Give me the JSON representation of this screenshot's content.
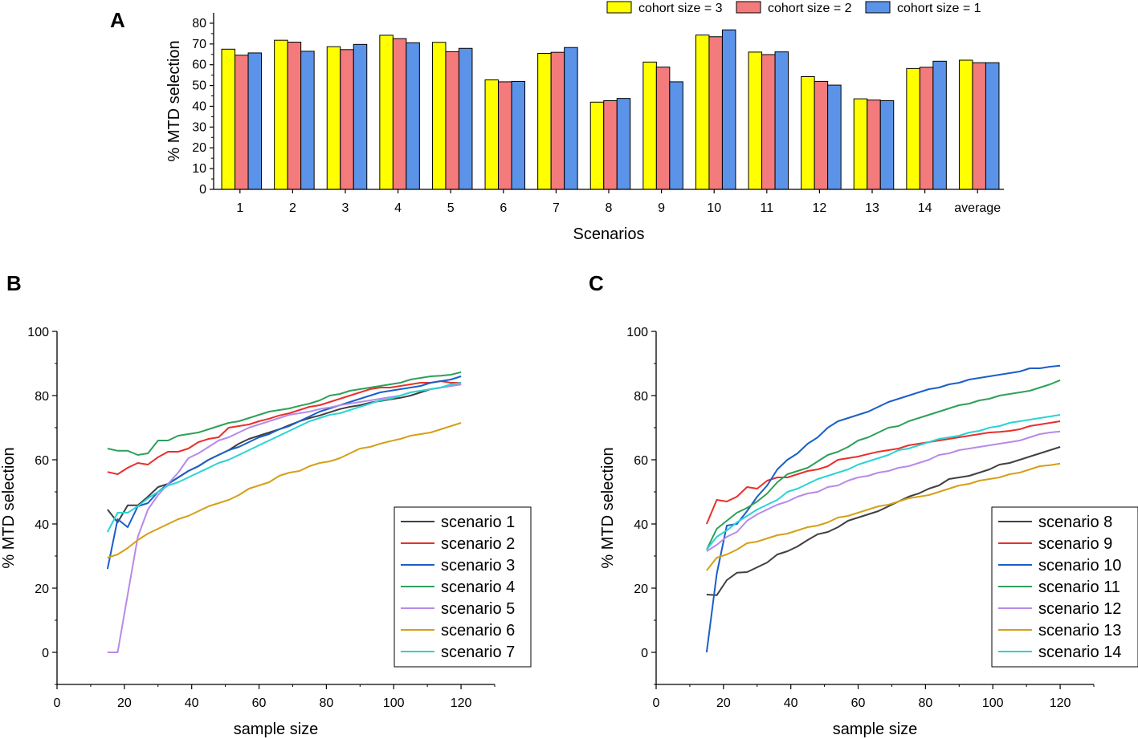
{
  "chart_data": [
    {
      "panel": "A",
      "type": "bar",
      "xlabel": "Scenarios",
      "ylabel": "% MTD selection",
      "ylim": [
        0,
        85
      ],
      "yticks": [
        0,
        10,
        20,
        30,
        40,
        50,
        60,
        70,
        80
      ],
      "categories": [
        "1",
        "2",
        "3",
        "4",
        "5",
        "6",
        "7",
        "8",
        "9",
        "10",
        "11",
        "12",
        "13",
        "14",
        "average"
      ],
      "legend_position": "top-right",
      "series": [
        {
          "name": "cohort size = 3",
          "color": "#ffff00",
          "values": [
            67.5,
            71.8,
            68.7,
            74.2,
            70.8,
            52.7,
            65.5,
            42.0,
            61.3,
            74.3,
            66.1,
            54.3,
            43.6,
            58.2,
            62.2
          ]
        },
        {
          "name": "cohort size = 2",
          "color": "#f37b7b",
          "values": [
            64.6,
            70.9,
            67.3,
            72.6,
            66.3,
            51.8,
            66.0,
            42.7,
            58.9,
            73.5,
            64.9,
            52.0,
            43.0,
            58.8,
            61.0
          ]
        },
        {
          "name": "cohort size = 1",
          "color": "#5b93e8",
          "values": [
            65.7,
            66.5,
            69.8,
            70.6,
            67.9,
            52.0,
            68.3,
            43.8,
            51.8,
            76.8,
            66.2,
            50.2,
            42.7,
            61.7,
            61.0
          ]
        }
      ]
    },
    {
      "panel": "B",
      "type": "line",
      "xlabel": "sample size",
      "ylabel": "% MTD selection",
      "xlim": [
        0,
        130
      ],
      "ylim": [
        -10,
        100
      ],
      "xticks": [
        0,
        20,
        40,
        60,
        80,
        100,
        120
      ],
      "yticks": [
        0,
        20,
        40,
        60,
        80,
        100
      ],
      "legend_position": "bottom-right",
      "x": [
        15,
        18,
        21,
        24,
        27,
        30,
        33,
        36,
        39,
        42,
        45,
        48,
        51,
        54,
        57,
        60,
        63,
        66,
        69,
        72,
        75,
        78,
        81,
        84,
        87,
        90,
        93,
        96,
        99,
        102,
        105,
        108,
        111,
        114,
        117,
        120
      ],
      "series": [
        {
          "name": "scenario 1",
          "color": "#404040",
          "values": [
            44.5,
            40.5,
            45.8,
            45.8,
            48.5,
            51.5,
            52.5,
            54.5,
            56.5,
            58.0,
            60.0,
            61.5,
            63.0,
            65.0,
            66.5,
            67.5,
            68.5,
            69.5,
            70.8,
            72.0,
            73.0,
            73.8,
            74.8,
            75.8,
            76.5,
            77.0,
            77.8,
            78.3,
            78.8,
            79.3,
            80.0,
            81.0,
            82.0,
            82.5,
            83.0,
            83.5
          ]
        },
        {
          "name": "scenario 2",
          "color": "#e8302a",
          "values": [
            56.2,
            55.5,
            57.5,
            59.0,
            58.5,
            60.8,
            62.5,
            62.5,
            63.5,
            65.5,
            66.5,
            67.0,
            70.0,
            70.5,
            71.0,
            72.0,
            72.8,
            73.8,
            74.5,
            75.5,
            76.5,
            77.0,
            78.0,
            79.0,
            80.0,
            81.0,
            82.0,
            82.5,
            82.5,
            83.0,
            83.5,
            84.0,
            84.0,
            84.5,
            84.0,
            84.0
          ]
        },
        {
          "name": "scenario 3",
          "color": "#1a5fc8",
          "values": [
            26.0,
            41.5,
            39.0,
            45.5,
            46.5,
            50.0,
            52.5,
            54.5,
            56.5,
            58.0,
            60.0,
            61.5,
            63.0,
            64.0,
            65.5,
            67.0,
            68.0,
            69.5,
            70.5,
            72.0,
            73.5,
            75.0,
            76.0,
            77.0,
            78.0,
            79.0,
            80.0,
            81.0,
            81.5,
            82.0,
            82.5,
            83.0,
            84.0,
            84.5,
            85.0,
            86.0
          ]
        },
        {
          "name": "scenario 4",
          "color": "#2ea05a",
          "values": [
            63.5,
            62.8,
            62.8,
            61.5,
            62.0,
            66.0,
            66.0,
            67.5,
            68.0,
            68.5,
            69.5,
            70.5,
            71.5,
            72.0,
            73.0,
            74.0,
            75.0,
            75.5,
            76.0,
            76.8,
            77.5,
            78.5,
            80.0,
            80.5,
            81.5,
            82.0,
            82.5,
            83.0,
            83.5,
            84.0,
            85.0,
            85.5,
            86.0,
            86.2,
            86.5,
            87.3
          ]
        },
        {
          "name": "scenario 5",
          "color": "#b78ae8",
          "values": [
            0,
            0,
            18.0,
            36.0,
            44.5,
            49.0,
            52.5,
            56.0,
            60.5,
            62.0,
            64.0,
            66.0,
            67.0,
            68.5,
            70.0,
            71.0,
            72.0,
            73.0,
            74.0,
            74.5,
            75.0,
            75.8,
            76.3,
            77.0,
            77.5,
            78.0,
            78.5,
            79.0,
            79.5,
            80.0,
            81.0,
            81.5,
            82.0,
            82.5,
            83.0,
            83.5
          ]
        },
        {
          "name": "scenario 6",
          "color": "#d4a017",
          "values": [
            29.5,
            30.5,
            32.5,
            35.0,
            37.0,
            38.5,
            40.0,
            41.5,
            42.5,
            44.0,
            45.5,
            46.5,
            47.5,
            49.0,
            51.0,
            52.0,
            53.0,
            55.0,
            56.0,
            56.5,
            58.0,
            59.0,
            59.5,
            60.5,
            62.0,
            63.5,
            64.0,
            65.0,
            65.8,
            66.5,
            67.5,
            68.0,
            68.5,
            69.5,
            70.5,
            71.5
          ]
        },
        {
          "name": "scenario 7",
          "color": "#2bd3d3",
          "values": [
            37.5,
            43.5,
            43.5,
            45.5,
            48.0,
            50.0,
            52.0,
            53.0,
            54.5,
            56.0,
            57.5,
            59.0,
            60.0,
            61.5,
            63.0,
            64.5,
            66.0,
            67.5,
            69.0,
            70.5,
            72.0,
            73.0,
            74.0,
            74.5,
            75.5,
            76.5,
            77.5,
            78.5,
            79.0,
            80.0,
            81.0,
            81.5,
            82.0,
            82.5,
            83.5,
            84.0
          ]
        }
      ]
    },
    {
      "panel": "C",
      "type": "line",
      "xlabel": "sample size",
      "ylabel": "% MTD selection",
      "xlim": [
        0,
        130
      ],
      "ylim": [
        -10,
        100
      ],
      "xticks": [
        0,
        20,
        40,
        60,
        80,
        100,
        120
      ],
      "yticks": [
        0,
        20,
        40,
        60,
        80,
        100
      ],
      "legend_position": "bottom-right",
      "x": [
        15,
        18,
        21,
        24,
        27,
        30,
        33,
        36,
        39,
        42,
        45,
        48,
        51,
        54,
        57,
        60,
        63,
        66,
        69,
        72,
        75,
        78,
        81,
        84,
        87,
        90,
        93,
        96,
        99,
        102,
        105,
        108,
        111,
        114,
        117,
        120
      ],
      "series": [
        {
          "name": "scenario 8",
          "color": "#404040",
          "values": [
            18.0,
            17.8,
            22.5,
            24.8,
            25.0,
            26.5,
            28.0,
            30.5,
            31.5,
            33.0,
            35.0,
            36.8,
            37.5,
            39.0,
            41.0,
            42.0,
            43.0,
            44.0,
            45.5,
            47.0,
            48.5,
            49.5,
            51.0,
            52.0,
            54.0,
            54.5,
            55.0,
            56.0,
            57.0,
            58.5,
            59.0,
            60.0,
            61.0,
            62.0,
            63.0,
            64.0
          ]
        },
        {
          "name": "scenario 9",
          "color": "#e8302a",
          "values": [
            40.0,
            47.5,
            47.0,
            48.5,
            51.5,
            51.0,
            53.5,
            54.5,
            54.5,
            55.5,
            56.5,
            57.0,
            58.0,
            60.0,
            60.5,
            61.0,
            61.8,
            62.5,
            63.0,
            63.5,
            64.5,
            65.0,
            65.5,
            66.0,
            66.5,
            67.0,
            67.5,
            68.0,
            68.5,
            68.7,
            69.0,
            69.5,
            70.5,
            71.0,
            71.5,
            72.0
          ]
        },
        {
          "name": "scenario 10",
          "color": "#1a5fc8",
          "values": [
            0,
            24.5,
            39.5,
            40.0,
            44.0,
            48.5,
            52.0,
            57.0,
            60.0,
            62.0,
            65.0,
            67.0,
            70.0,
            72.0,
            73.0,
            74.0,
            75.0,
            76.5,
            78.0,
            79.0,
            80.0,
            81.0,
            82.0,
            82.5,
            83.5,
            84.0,
            85.0,
            85.5,
            86.0,
            86.5,
            87.0,
            87.5,
            88.5,
            88.5,
            89.0,
            89.3
          ]
        },
        {
          "name": "scenario 11",
          "color": "#2ea05a",
          "values": [
            32.0,
            38.5,
            41.0,
            43.5,
            45.0,
            47.0,
            49.5,
            53.0,
            55.5,
            56.5,
            57.5,
            59.5,
            61.5,
            62.5,
            64.0,
            66.0,
            67.0,
            68.5,
            70.0,
            70.5,
            72.0,
            73.0,
            74.0,
            75.0,
            76.0,
            77.0,
            77.5,
            78.5,
            79.0,
            80.0,
            80.5,
            81.0,
            81.5,
            82.5,
            83.5,
            84.8
          ]
        },
        {
          "name": "scenario 12",
          "color": "#b78ae8",
          "values": [
            31.5,
            33.5,
            36.0,
            37.5,
            41.0,
            43.0,
            44.5,
            46.0,
            47.0,
            48.5,
            49.5,
            50.0,
            51.5,
            52.0,
            53.5,
            54.5,
            55.0,
            56.0,
            56.5,
            57.5,
            58.0,
            59.0,
            60.0,
            61.5,
            62.0,
            63.0,
            63.5,
            64.0,
            64.5,
            65.0,
            65.5,
            66.0,
            67.0,
            68.0,
            68.5,
            68.8
          ]
        },
        {
          "name": "scenario 13",
          "color": "#d4a017",
          "values": [
            25.5,
            29.5,
            30.5,
            32.0,
            34.0,
            34.5,
            35.5,
            36.5,
            37.0,
            38.0,
            39.0,
            39.5,
            40.5,
            42.0,
            42.5,
            43.5,
            44.5,
            45.5,
            46.0,
            47.0,
            48.0,
            48.5,
            49.0,
            50.0,
            51.0,
            52.0,
            52.5,
            53.5,
            54.0,
            54.5,
            55.5,
            56.0,
            57.0,
            58.0,
            58.3,
            58.8
          ]
        },
        {
          "name": "scenario 14",
          "color": "#2bd3d3",
          "values": [
            32.0,
            36.0,
            38.0,
            40.5,
            42.5,
            44.5,
            46.0,
            47.5,
            50.0,
            51.0,
            52.5,
            54.0,
            55.0,
            56.0,
            57.0,
            58.5,
            59.5,
            60.5,
            61.5,
            63.0,
            63.5,
            64.5,
            65.5,
            66.5,
            67.0,
            67.5,
            68.5,
            69.0,
            70.0,
            70.5,
            71.5,
            72.0,
            72.5,
            73.0,
            73.5,
            74.0
          ]
        }
      ]
    }
  ]
}
